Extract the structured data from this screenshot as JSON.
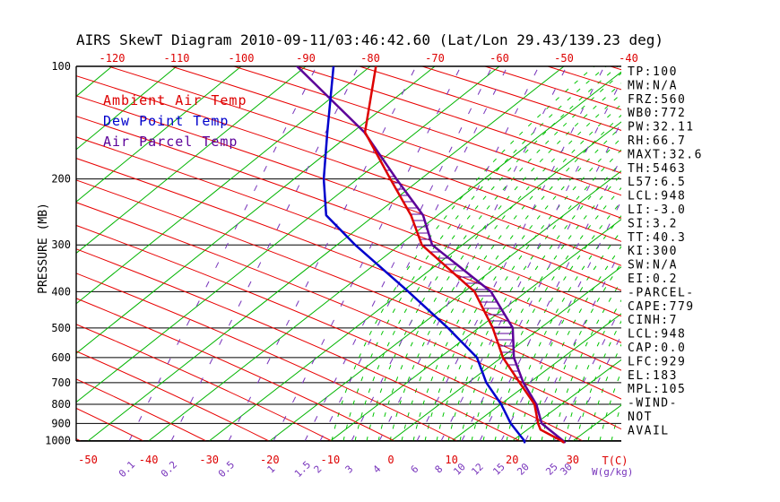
{
  "title": "AIRS SkewT Diagram 2010-09-11/03:46:42.60 (Lat/Lon 29.43/139.23 deg)",
  "legend": {
    "items": [
      {
        "label": "Ambient Air Temp",
        "color": "#dd0000"
      },
      {
        "label": "Dew Point Temp",
        "color": "#0000cc"
      },
      {
        "label": "Air Parcel Temp",
        "color": "#5c0099"
      }
    ]
  },
  "axes": {
    "pressure_axis_label": "PRESSURE (MB)",
    "temp_axis_label": "T(C)",
    "mixing_ratio_axis_label": "W(g/kg)"
  },
  "stats_panel": {
    "lines": [
      "TP:100",
      "MW:N/A",
      "FRZ:560",
      "WB0:772",
      "PW:32.11",
      "RH:66.7",
      "MAXT:32.6",
      "TH:5463",
      "L57:6.5",
      "LCL:948",
      "LI:-3.0",
      "SI:3.2",
      "TT:40.3",
      "KI:300",
      "SW:N/A",
      "EI:0.2",
      "-PARCEL-",
      "CAPE:779",
      "CINH:7",
      "LCL:948",
      "CAP:0.0",
      "LFC:929",
      "EL:183",
      "MPL:105",
      "-WIND-",
      "NOT",
      "AVAIL"
    ]
  },
  "colors": {
    "isotherm_green": "#00b400",
    "moist_adiabat_green": "#00c400",
    "dry_adiabat_red": "#e80000",
    "mixing_ratio_purple": "#7733bb",
    "ambient_red": "#dd0000",
    "dewpoint_blue": "#0000cc",
    "parcel_purple": "#5c0099",
    "frame_black": "#000000",
    "label_red": "#dd0000"
  },
  "chart_data": {
    "type": "line",
    "title": "AIRS SkewT Diagram 2010-09-11/03:46:42.60 (Lat/Lon 29.43/139.23 deg)",
    "xlabel": "T(C)",
    "ylabel": "PRESSURE (MB)",
    "y_scale": "log-pressure, inverted (100 MB top, 1000 MB bottom)",
    "x_skew": "isotherms slanted 45 deg up-right (skew-T)",
    "grid": "isotherms green solid; dry adiabats red solid; mixing-ratio lines purple dashed; moist adiabats green dashed; pressure levels black horizontal",
    "pressure_ticks_mb": [
      100,
      200,
      300,
      400,
      500,
      600,
      700,
      800,
      900,
      1000
    ],
    "pressure_range_mb": [
      100,
      1010
    ],
    "top_temp_ticks_c": [
      -120,
      -110,
      -100,
      -90,
      -80,
      -70,
      -60,
      -50,
      -40
    ],
    "bottom_temp_ticks_c": [
      -50,
      -40,
      -30,
      -20,
      -10,
      0,
      10,
      20,
      30
    ],
    "mixing_ratio_ticks_gkg": [
      0.1,
      0.2,
      0.5,
      1,
      1.5,
      2,
      3,
      4,
      6,
      8,
      10,
      12,
      15,
      20,
      25,
      30
    ],
    "cape_hatch": {
      "between": [
        "Ambient Air Temp",
        "Air Parcel Temp"
      ],
      "pressure_range_mb": [
        190,
        690
      ]
    },
    "series": [
      {
        "name": "Ambient Air Temp",
        "color": "#dd0000",
        "points_pressure_mb_temp_c": [
          [
            100,
            -81
          ],
          [
            150,
            -69
          ],
          [
            200,
            -55
          ],
          [
            250,
            -44
          ],
          [
            300,
            -36
          ],
          [
            400,
            -17.5
          ],
          [
            500,
            -6.9
          ],
          [
            600,
            1.0
          ],
          [
            700,
            9.0
          ],
          [
            800,
            16.0
          ],
          [
            900,
            20.6
          ],
          [
            935,
            22.3
          ],
          [
            1000,
            28.0
          ],
          [
            1010,
            28.7
          ]
        ]
      },
      {
        "name": "Dew Point Temp",
        "color": "#0000cc",
        "points_pressure_mb_temp_c": [
          [
            100,
            -88
          ],
          [
            150,
            -75.2
          ],
          [
            200,
            -66
          ],
          [
            250,
            -58
          ],
          [
            300,
            -47
          ],
          [
            400,
            -28.4
          ],
          [
            500,
            -14.3
          ],
          [
            600,
            -3.3
          ],
          [
            700,
            3.5
          ],
          [
            800,
            10.5
          ],
          [
            900,
            16.1
          ],
          [
            1000,
            21.9
          ],
          [
            1010,
            22.3
          ]
        ]
      },
      {
        "name": "Air Parcel Temp",
        "color": "#5c0099",
        "points_pressure_mb_temp_c": [
          [
            100,
            -94
          ],
          [
            150,
            -69.1
          ],
          [
            200,
            -54
          ],
          [
            250,
            -42
          ],
          [
            300,
            -34.3
          ],
          [
            400,
            -14.8
          ],
          [
            500,
            -3.6
          ],
          [
            600,
            2.8
          ],
          [
            700,
            9.6
          ],
          [
            800,
            16.3
          ],
          [
            900,
            21.2
          ],
          [
            1000,
            28.3
          ],
          [
            1010,
            28.9
          ]
        ]
      }
    ]
  }
}
